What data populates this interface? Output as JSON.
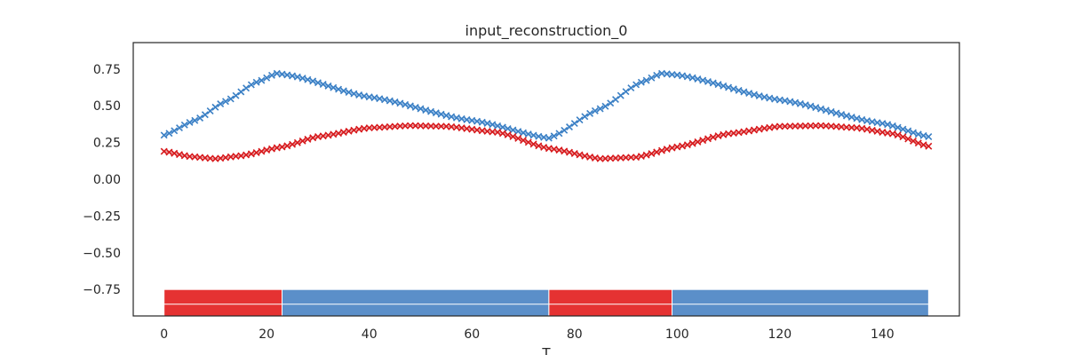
{
  "chart_data": {
    "type": "line",
    "title": "input_reconstruction_0",
    "xlabel": "T",
    "ylabel": "",
    "xlim": [
      -6,
      155
    ],
    "ylim": [
      -0.93,
      0.93
    ],
    "xticks": [
      0,
      20,
      40,
      60,
      80,
      100,
      120,
      140
    ],
    "yticks": [
      0.75,
      0.5,
      0.25,
      0.0,
      -0.25,
      -0.5,
      -0.75
    ],
    "ytick_labels": [
      "0.75",
      "0.50",
      "0.25",
      "0.00",
      "−0.25",
      "−0.50",
      "−0.75"
    ],
    "grid": false,
    "series": [
      {
        "color": "#3a7fc4",
        "marker": "x",
        "line_color": "#87b6e6",
        "keypoints": [
          [
            0,
            0.3
          ],
          [
            6,
            0.4
          ],
          [
            12,
            0.53
          ],
          [
            18,
            0.66
          ],
          [
            22,
            0.72
          ],
          [
            24,
            0.71
          ],
          [
            40,
            0.56
          ],
          [
            60,
            0.4
          ],
          [
            75,
            0.28
          ],
          [
            85,
            0.48
          ],
          [
            93,
            0.66
          ],
          [
            97,
            0.72
          ],
          [
            100,
            0.71
          ],
          [
            120,
            0.54
          ],
          [
            140,
            0.38
          ],
          [
            149,
            0.29
          ]
        ]
      },
      {
        "color": "#d7191c",
        "marker": "x",
        "line_color": "#e2878a",
        "keypoints": [
          [
            0,
            0.19
          ],
          [
            5,
            0.155
          ],
          [
            10,
            0.14
          ],
          [
            15,
            0.16
          ],
          [
            23,
            0.22
          ],
          [
            30,
            0.29
          ],
          [
            40,
            0.35
          ],
          [
            48,
            0.365
          ],
          [
            55,
            0.36
          ],
          [
            65,
            0.32
          ],
          [
            75,
            0.21
          ],
          [
            85,
            0.14
          ],
          [
            92,
            0.15
          ],
          [
            100,
            0.22
          ],
          [
            110,
            0.31
          ],
          [
            120,
            0.36
          ],
          [
            128,
            0.365
          ],
          [
            135,
            0.35
          ],
          [
            142,
            0.31
          ],
          [
            149,
            0.225
          ]
        ]
      }
    ],
    "segments_band": {
      "y_range": [
        -0.95,
        -0.75
      ],
      "segments": [
        {
          "start": 0,
          "end": 23,
          "color": "#e53232"
        },
        {
          "start": 23,
          "end": 75,
          "color": "#5b8fc9"
        },
        {
          "start": 75,
          "end": 99,
          "color": "#e53232"
        },
        {
          "start": 99,
          "end": 149,
          "color": "#5b8fc9"
        }
      ]
    }
  }
}
